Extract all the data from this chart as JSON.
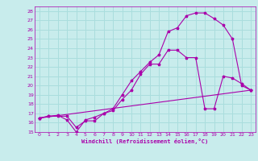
{
  "xlabel": "Windchill (Refroidissement éolien,°C)",
  "bg_color": "#c8ecec",
  "line_color": "#aa00aa",
  "grid_color": "#aadddd",
  "xlim": [
    -0.5,
    23.5
  ],
  "ylim": [
    15,
    28.5
  ],
  "xticks": [
    0,
    1,
    2,
    3,
    4,
    5,
    6,
    7,
    8,
    9,
    10,
    11,
    12,
    13,
    14,
    15,
    16,
    17,
    18,
    19,
    20,
    21,
    22,
    23
  ],
  "yticks": [
    15,
    16,
    17,
    18,
    19,
    20,
    21,
    22,
    23,
    24,
    25,
    26,
    27,
    28
  ],
  "line1_x": [
    0,
    1,
    2,
    3,
    4,
    5,
    6,
    7,
    8,
    9,
    10,
    11,
    12,
    13,
    14,
    15,
    16,
    17,
    18,
    19,
    20,
    21,
    22,
    23
  ],
  "line1_y": [
    16.5,
    16.7,
    16.8,
    16.3,
    15.0,
    16.3,
    16.6,
    17.0,
    17.5,
    19.0,
    20.5,
    21.5,
    22.5,
    23.3,
    25.8,
    26.2,
    27.5,
    27.8,
    27.8,
    27.2,
    26.5,
    25.0,
    20.0,
    19.5
  ],
  "line2_x": [
    0,
    1,
    2,
    3,
    4,
    5,
    6,
    7,
    8,
    9,
    10,
    11,
    12,
    13,
    14,
    15,
    16,
    17,
    18,
    19,
    20,
    21,
    22,
    23
  ],
  "line2_y": [
    16.5,
    16.7,
    16.7,
    16.7,
    15.5,
    16.2,
    16.2,
    17.0,
    17.3,
    18.5,
    19.5,
    21.2,
    22.3,
    22.3,
    23.8,
    23.8,
    23.0,
    23.0,
    17.5,
    17.5,
    21.0,
    20.8,
    20.2,
    19.5
  ],
  "line3_x": [
    0,
    23
  ],
  "line3_y": [
    16.5,
    19.5
  ]
}
